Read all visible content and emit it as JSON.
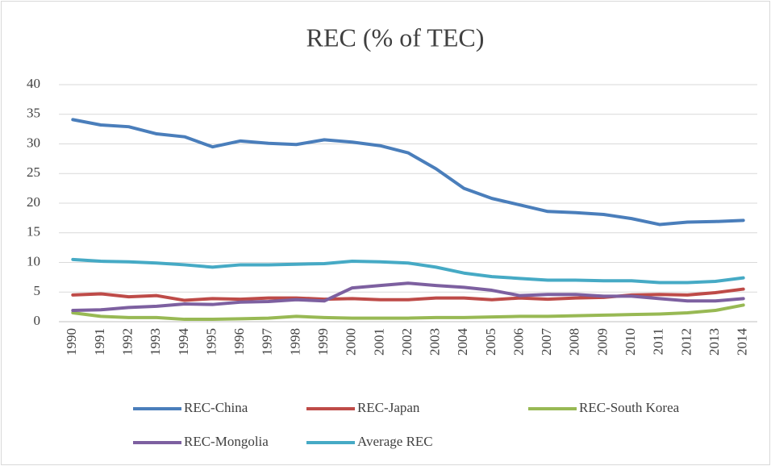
{
  "chart_data": {
    "type": "line",
    "title": "REC (% of TEC)",
    "categories": [
      "1990",
      "1991",
      "1992",
      "1993",
      "1994",
      "1995",
      "1996",
      "1997",
      "1998",
      "1999",
      "2000",
      "2001",
      "2002",
      "2003",
      "2004",
      "2005",
      "2006",
      "2007",
      "2008",
      "2009",
      "2010",
      "2011",
      "2012",
      "2013",
      "2014"
    ],
    "series": [
      {
        "name": "REC-China",
        "color": "#4a7ebb",
        "values": [
          34.1,
          33.2,
          32.9,
          31.7,
          31.2,
          29.5,
          30.5,
          30.1,
          29.9,
          30.7,
          30.3,
          29.7,
          28.5,
          25.8,
          22.5,
          20.8,
          19.7,
          18.6,
          18.4,
          18.1,
          17.4,
          16.4,
          16.8,
          16.9,
          17.1
        ]
      },
      {
        "name": "REC-Japan",
        "color": "#be4b48",
        "values": [
          4.5,
          4.7,
          4.2,
          4.4,
          3.6,
          3.9,
          3.8,
          4.0,
          4.0,
          3.8,
          3.9,
          3.7,
          3.7,
          4.0,
          4.0,
          3.7,
          4.0,
          3.8,
          4.0,
          4.1,
          4.5,
          4.6,
          4.5,
          4.9,
          5.5
        ]
      },
      {
        "name": "REC-South Korea",
        "color": "#98b954",
        "values": [
          1.5,
          0.9,
          0.7,
          0.7,
          0.4,
          0.4,
          0.5,
          0.6,
          0.9,
          0.7,
          0.6,
          0.6,
          0.6,
          0.7,
          0.7,
          0.8,
          0.9,
          0.9,
          1.0,
          1.1,
          1.2,
          1.3,
          1.5,
          1.9,
          2.8
        ]
      },
      {
        "name": "REC-Mongolia",
        "color": "#7d60a0",
        "values": [
          1.9,
          2.0,
          2.4,
          2.6,
          3.0,
          2.9,
          3.3,
          3.4,
          3.7,
          3.5,
          5.7,
          6.1,
          6.5,
          6.1,
          5.8,
          5.3,
          4.4,
          4.6,
          4.6,
          4.3,
          4.3,
          3.9,
          3.5,
          3.5,
          3.9
        ]
      },
      {
        "name": "Average REC",
        "color": "#46aac5",
        "values": [
          10.5,
          10.2,
          10.1,
          9.9,
          9.6,
          9.2,
          9.6,
          9.6,
          9.7,
          9.8,
          10.2,
          10.1,
          9.9,
          9.2,
          8.2,
          7.6,
          7.3,
          7.0,
          7.0,
          6.9,
          6.9,
          6.6,
          6.6,
          6.8,
          7.4
        ]
      }
    ],
    "ylim": [
      0,
      40
    ],
    "yticks": [
      0,
      5,
      10,
      15,
      20,
      25,
      30,
      35,
      40
    ],
    "grid": true
  }
}
